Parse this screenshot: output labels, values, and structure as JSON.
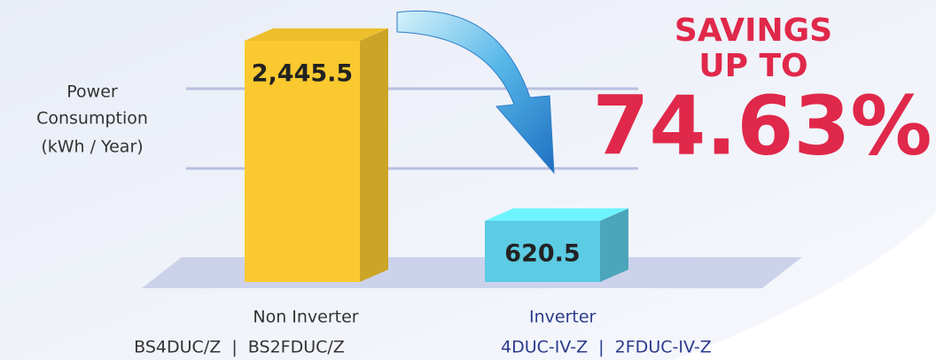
{
  "chart_data": {
    "type": "bar3d",
    "y_label": [
      "Power",
      "Consumption",
      "(kWh / Year)"
    ],
    "categories": [
      "Non Inverter",
      "Inverter"
    ],
    "models": [
      "BS4DUC/Z  |  BS2FDUC/Z",
      "4DUC-IV-Z  |  2FDUC-IV-Z"
    ],
    "values": [
      2445.5,
      620.5
    ],
    "value_labels": [
      "2,445.5",
      "620.5"
    ],
    "colors": [
      "#f9c92f",
      "#5ccbe4"
    ],
    "label_colors": [
      "#333333",
      "#2b3a8c"
    ],
    "annotation": {
      "title": [
        "SAVINGS",
        "UP TO"
      ],
      "value": "74.63%",
      "color": "#e0284a"
    }
  }
}
